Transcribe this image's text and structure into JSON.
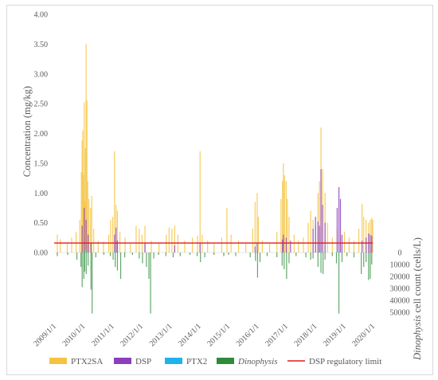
{
  "chart_data": {
    "type": "bar",
    "title": "",
    "ylabel": "Concentration (mg/kg)",
    "y2label_italic": "Dinophysis",
    "y2label_rest": " cell count (cells/L)",
    "ylim": [
      0,
      4.0
    ],
    "yticks": [
      "0.00",
      "0.50",
      "1.00",
      "1.50",
      "2.00",
      "2.50",
      "3.00",
      "3.50",
      "4.00"
    ],
    "y2lim": [
      0,
      50000
    ],
    "y2ticks": [
      "0",
      "10000",
      "20000",
      "30000",
      "40000",
      "50000"
    ],
    "x_range": [
      "2009-01-01",
      "2020-01-01"
    ],
    "xticks": [
      "2009/1/1",
      "2010/1/1",
      "2011/1/1",
      "2012/1/1",
      "2013/1/1",
      "2014/1/1",
      "2015/1/1",
      "2016/1/1",
      "2017/1/1",
      "2018/1/1",
      "2019/1/1",
      "2020/1/1"
    ],
    "regulatory_limit": {
      "name": "DSP regulatory limit",
      "value": 0.16,
      "color": "#e31a1c"
    },
    "legend_position": "bottom",
    "series": [
      {
        "name": "PTX2SA",
        "italic": false,
        "color": "#f5c342",
        "axis": "left",
        "points": [
          [
            "2009-02-10",
            0.3
          ],
          [
            "2009-03-20",
            0.22
          ],
          [
            "2009-06-15",
            0.15
          ],
          [
            "2009-08-10",
            0.25
          ],
          [
            "2009-10-05",
            0.35
          ],
          [
            "2009-11-20",
            0.55
          ],
          [
            "2009-12-10",
            1.35
          ],
          [
            "2009-12-20",
            1.88
          ],
          [
            "2009-12-28",
            2.05
          ],
          [
            "2010-01-08",
            1.3
          ],
          [
            "2010-01-15",
            2.52
          ],
          [
            "2010-01-22",
            0.85
          ],
          [
            "2010-01-30",
            1.75
          ],
          [
            "2010-02-08",
            3.5
          ],
          [
            "2010-02-18",
            2.55
          ],
          [
            "2010-02-28",
            1.2
          ],
          [
            "2010-03-15",
            0.9
          ],
          [
            "2010-04-05",
            0.75
          ],
          [
            "2010-04-20",
            0.95
          ],
          [
            "2010-05-15",
            0.4
          ],
          [
            "2010-07-10",
            0.2
          ],
          [
            "2010-09-15",
            0.18
          ],
          [
            "2010-11-20",
            0.3
          ],
          [
            "2010-12-15",
            0.55
          ],
          [
            "2011-01-10",
            0.6
          ],
          [
            "2011-02-01",
            1.7
          ],
          [
            "2011-02-20",
            0.8
          ],
          [
            "2011-03-10",
            0.7
          ],
          [
            "2011-04-10",
            0.35
          ],
          [
            "2011-06-15",
            0.25
          ],
          [
            "2011-08-20",
            0.15
          ],
          [
            "2011-11-01",
            0.45
          ],
          [
            "2011-12-10",
            0.4
          ],
          [
            "2012-01-15",
            0.3
          ],
          [
            "2012-02-20",
            0.45
          ],
          [
            "2012-05-10",
            0.2
          ],
          [
            "2012-08-15",
            0.15
          ],
          [
            "2012-11-15",
            0.3
          ],
          [
            "2012-12-20",
            0.42
          ],
          [
            "2013-01-25",
            0.4
          ],
          [
            "2013-03-01",
            0.45
          ],
          [
            "2013-04-10",
            0.3
          ],
          [
            "2013-07-05",
            0.2
          ],
          [
            "2013-10-10",
            0.25
          ],
          [
            "2013-12-15",
            0.28
          ],
          [
            "2014-01-15",
            1.7
          ],
          [
            "2014-02-10",
            0.3
          ],
          [
            "2014-04-20",
            0.2
          ],
          [
            "2014-07-10",
            0.15
          ],
          [
            "2014-10-15",
            0.25
          ],
          [
            "2014-12-20",
            0.75
          ],
          [
            "2015-02-10",
            0.3
          ],
          [
            "2015-05-15",
            0.2
          ],
          [
            "2015-08-15",
            0.15
          ],
          [
            "2015-11-10",
            0.4
          ],
          [
            "2015-12-10",
            0.85
          ],
          [
            "2016-01-05",
            1.0
          ],
          [
            "2016-01-20",
            0.6
          ],
          [
            "2016-03-10",
            0.2
          ],
          [
            "2016-06-10",
            0.15
          ],
          [
            "2016-09-10",
            0.35
          ],
          [
            "2016-11-01",
            0.9
          ],
          [
            "2016-11-20",
            1.2
          ],
          [
            "2016-12-01",
            1.5
          ],
          [
            "2016-12-15",
            1.3
          ],
          [
            "2017-01-05",
            1.2
          ],
          [
            "2017-01-20",
            0.9
          ],
          [
            "2017-02-10",
            0.6
          ],
          [
            "2017-04-15",
            0.3
          ],
          [
            "2017-06-10",
            0.2
          ],
          [
            "2017-08-10",
            0.25
          ],
          [
            "2017-10-10",
            0.5
          ],
          [
            "2017-11-10",
            0.7
          ],
          [
            "2017-12-10",
            0.55
          ],
          [
            "2018-01-10",
            0.45
          ],
          [
            "2018-02-10",
            1.0
          ],
          [
            "2018-03-01",
            1.2
          ],
          [
            "2018-03-20",
            2.1
          ],
          [
            "2018-04-10",
            1.4
          ],
          [
            "2018-05-10",
            1.0
          ],
          [
            "2018-06-10",
            0.5
          ],
          [
            "2018-08-10",
            0.25
          ],
          [
            "2018-10-10",
            0.4
          ],
          [
            "2018-11-20",
            0.3
          ],
          [
            "2019-01-10",
            0.35
          ],
          [
            "2019-03-10",
            0.25
          ],
          [
            "2019-05-10",
            0.2
          ],
          [
            "2019-07-10",
            0.4
          ],
          [
            "2019-08-20",
            0.82
          ],
          [
            "2019-09-10",
            0.6
          ],
          [
            "2019-10-10",
            0.55
          ],
          [
            "2019-11-10",
            0.5
          ],
          [
            "2019-12-01",
            0.55
          ],
          [
            "2019-12-20",
            0.58
          ],
          [
            "2020-01-01",
            0.55
          ]
        ]
      },
      {
        "name": "DSP",
        "italic": false,
        "color": "#8b3fbf",
        "axis": "left",
        "points": [
          [
            "2009-12-20",
            0.45
          ],
          [
            "2010-01-15",
            0.75
          ],
          [
            "2010-02-08",
            0.55
          ],
          [
            "2010-03-05",
            0.3
          ],
          [
            "2010-04-10",
            0.15
          ],
          [
            "2011-02-01",
            0.3
          ],
          [
            "2011-02-20",
            0.42
          ],
          [
            "2011-03-10",
            0.2
          ],
          [
            "2012-02-20",
            0.15
          ],
          [
            "2013-03-01",
            0.12
          ],
          [
            "2014-01-15",
            0.15
          ],
          [
            "2015-12-10",
            0.1
          ],
          [
            "2016-01-05",
            0.15
          ],
          [
            "2016-11-20",
            0.22
          ],
          [
            "2016-12-01",
            0.3
          ],
          [
            "2017-01-05",
            0.25
          ],
          [
            "2017-03-01",
            0.2
          ],
          [
            "2017-12-10",
            0.4
          ],
          [
            "2018-01-10",
            0.6
          ],
          [
            "2018-02-10",
            0.52
          ],
          [
            "2018-03-01",
            0.45
          ],
          [
            "2018-03-20",
            1.4
          ],
          [
            "2018-04-10",
            0.8
          ],
          [
            "2018-05-10",
            0.5
          ],
          [
            "2018-10-10",
            0.75
          ],
          [
            "2018-11-01",
            1.1
          ],
          [
            "2018-11-20",
            0.9
          ],
          [
            "2018-12-10",
            0.3
          ],
          [
            "2019-08-20",
            0.2
          ],
          [
            "2019-10-10",
            0.25
          ],
          [
            "2019-11-10",
            0.32
          ],
          [
            "2019-12-01",
            0.3
          ],
          [
            "2019-12-20",
            0.28
          ]
        ]
      },
      {
        "name": "PTX2",
        "italic": false,
        "color": "#1fb4e8",
        "axis": "left",
        "points": [
          [
            "2010-01-15",
            0.04
          ],
          [
            "2010-02-08",
            0.05
          ],
          [
            "2011-02-01",
            0.03
          ],
          [
            "2016-12-01",
            0.03
          ],
          [
            "2018-03-20",
            0.04
          ],
          [
            "2018-11-01",
            0.03
          ]
        ]
      },
      {
        "name": "Dinophysis",
        "italic": true,
        "color": "#2e8b3a",
        "axis": "right",
        "points": [
          [
            "2009-02-10",
            3000
          ],
          [
            "2009-06-20",
            2000
          ],
          [
            "2009-10-15",
            6000
          ],
          [
            "2009-12-05",
            12000
          ],
          [
            "2009-12-20",
            29000
          ],
          [
            "2010-01-10",
            22000
          ],
          [
            "2010-01-20",
            16000
          ],
          [
            "2010-02-10",
            18000
          ],
          [
            "2010-03-05",
            11000
          ],
          [
            "2010-04-10",
            31000
          ],
          [
            "2010-04-25",
            51000
          ],
          [
            "2010-06-10",
            4000
          ],
          [
            "2010-09-20",
            2000
          ],
          [
            "2010-12-10",
            3000
          ],
          [
            "2011-01-15",
            6000
          ],
          [
            "2011-02-10",
            12000
          ],
          [
            "2011-03-10",
            15000
          ],
          [
            "2011-04-20",
            22000
          ],
          [
            "2011-06-10",
            4000
          ],
          [
            "2011-09-15",
            2000
          ],
          [
            "2011-12-10",
            5000
          ],
          [
            "2012-01-20",
            9000
          ],
          [
            "2012-03-10",
            12000
          ],
          [
            "2012-04-10",
            22000
          ],
          [
            "2012-05-01",
            51000
          ],
          [
            "2012-06-10",
            5000
          ],
          [
            "2012-08-10",
            2000
          ],
          [
            "2012-11-10",
            3000
          ],
          [
            "2013-02-10",
            4000
          ],
          [
            "2013-05-10",
            3000
          ],
          [
            "2013-09-10",
            2000
          ],
          [
            "2013-12-10",
            3000
          ],
          [
            "2014-01-20",
            8000
          ],
          [
            "2014-03-15",
            4000
          ],
          [
            "2014-07-10",
            2000
          ],
          [
            "2014-11-10",
            3000
          ],
          [
            "2015-01-10",
            2000
          ],
          [
            "2015-04-10",
            3000
          ],
          [
            "2015-10-10",
            4000
          ],
          [
            "2015-12-15",
            7000
          ],
          [
            "2016-01-10",
            21000
          ],
          [
            "2016-02-10",
            8000
          ],
          [
            "2016-05-10",
            3000
          ],
          [
            "2016-09-10",
            4000
          ],
          [
            "2016-11-15",
            11000
          ],
          [
            "2016-12-10",
            14000
          ],
          [
            "2017-01-10",
            22000
          ],
          [
            "2017-02-10",
            9000
          ],
          [
            "2017-05-10",
            3000
          ],
          [
            "2017-09-10",
            4000
          ],
          [
            "2017-11-10",
            6000
          ],
          [
            "2017-12-10",
            5000
          ],
          [
            "2018-02-10",
            12000
          ],
          [
            "2018-03-20",
            17000
          ],
          [
            "2018-04-15",
            18000
          ],
          [
            "2018-05-10",
            6000
          ],
          [
            "2018-08-10",
            3000
          ],
          [
            "2018-10-01",
            9000
          ],
          [
            "2018-11-01",
            51000
          ],
          [
            "2018-12-10",
            8000
          ],
          [
            "2019-02-10",
            3000
          ],
          [
            "2019-05-10",
            4000
          ],
          [
            "2019-08-10",
            18000
          ],
          [
            "2019-09-10",
            12000
          ],
          [
            "2019-10-10",
            8000
          ],
          [
            "2019-11-10",
            23000
          ],
          [
            "2019-12-01",
            22000
          ],
          [
            "2019-12-20",
            10000
          ]
        ]
      }
    ]
  }
}
